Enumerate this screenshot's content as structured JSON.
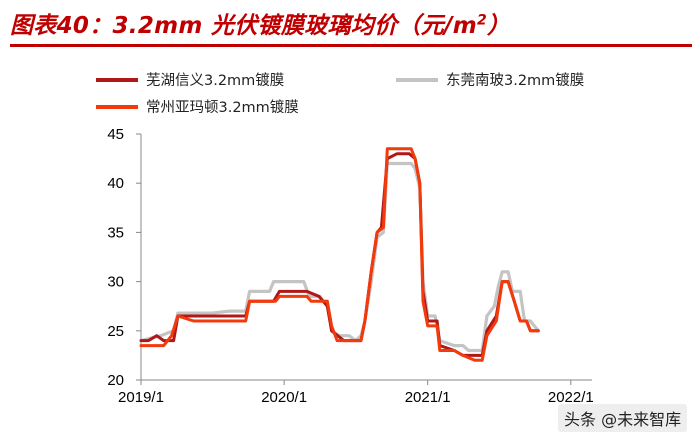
{
  "title": {
    "main": "图表40：3.2mm 光伏镀膜玻璃均价（元/m",
    "sup": "2",
    "close": "）"
  },
  "watermark": "头条 @未来智库",
  "chart_data": {
    "type": "line",
    "title": "图表40：3.2mm 光伏镀膜玻璃均价（元/m²）",
    "xlabel": "",
    "ylabel": "",
    "ylim": [
      20,
      45
    ],
    "yticks": [
      20,
      25,
      30,
      35,
      40,
      45
    ],
    "xlim": [
      "2019-01-01",
      "2022-02-24"
    ],
    "xticks": [
      "2019-01-01",
      "2020-01-01",
      "2021-01-01",
      "2022-01-01"
    ],
    "xtick_labels": [
      "2019/1",
      "2020/1",
      "2021/1",
      "2022/1"
    ],
    "grid": false,
    "legend_position": "top-left",
    "series": [
      {
        "name": "芜湖信义3.2mm镀膜",
        "color": "#b01818",
        "points": [
          [
            "2019-01-01",
            24.0
          ],
          [
            "2019-01-20",
            24.0
          ],
          [
            "2019-02-10",
            24.5
          ],
          [
            "2019-02-28",
            24.0
          ],
          [
            "2019-03-25",
            24.0
          ],
          [
            "2019-04-05",
            26.5
          ],
          [
            "2019-05-15",
            26.5
          ],
          [
            "2019-07-01",
            26.5
          ],
          [
            "2019-08-15",
            26.5
          ],
          [
            "2019-09-25",
            26.5
          ],
          [
            "2019-10-05",
            28.0
          ],
          [
            "2019-12-05",
            28.0
          ],
          [
            "2019-12-20",
            29.0
          ],
          [
            "2020-01-20",
            29.0
          ],
          [
            "2020-02-28",
            29.0
          ],
          [
            "2020-03-30",
            28.5
          ],
          [
            "2020-04-20",
            27.5
          ],
          [
            "2020-05-01",
            25.0
          ],
          [
            "2020-06-01",
            24.0
          ],
          [
            "2020-07-15",
            24.0
          ],
          [
            "2020-07-25",
            26.0
          ],
          [
            "2020-08-10",
            31.0
          ],
          [
            "2020-08-25",
            35.0
          ],
          [
            "2020-09-05",
            35.5
          ],
          [
            "2020-09-20",
            42.5
          ],
          [
            "2020-10-15",
            43.0
          ],
          [
            "2020-11-15",
            43.0
          ],
          [
            "2020-11-30",
            42.5
          ],
          [
            "2020-12-12",
            40.0
          ],
          [
            "2020-12-20",
            29.0
          ],
          [
            "2021-01-01",
            26.0
          ],
          [
            "2021-01-25",
            26.0
          ],
          [
            "2021-02-01",
            23.5
          ],
          [
            "2021-03-10",
            23.0
          ],
          [
            "2021-04-01",
            22.5
          ],
          [
            "2021-05-01",
            22.5
          ],
          [
            "2021-05-20",
            22.5
          ],
          [
            "2021-06-01",
            25.0
          ],
          [
            "2021-06-25",
            26.5
          ],
          [
            "2021-07-10",
            30.0
          ],
          [
            "2021-07-25",
            30.0
          ],
          [
            "2021-08-10",
            28.0
          ],
          [
            "2021-08-25",
            26.0
          ],
          [
            "2021-09-10",
            26.0
          ],
          [
            "2021-09-20",
            25.0
          ],
          [
            "2021-10-10",
            25.0
          ]
        ]
      },
      {
        "name": "东莞南玻3.2mm镀膜",
        "color": "#c4c4c4",
        "points": [
          [
            "2019-01-01",
            24.0
          ],
          [
            "2019-02-20",
            24.5
          ],
          [
            "2019-03-25",
            25.0
          ],
          [
            "2019-04-05",
            26.8
          ],
          [
            "2019-07-01",
            26.8
          ],
          [
            "2019-08-15",
            27.0
          ],
          [
            "2019-09-25",
            27.0
          ],
          [
            "2019-10-05",
            29.0
          ],
          [
            "2019-11-25",
            29.0
          ],
          [
            "2019-12-05",
            30.0
          ],
          [
            "2020-01-05",
            30.0
          ],
          [
            "2020-02-20",
            30.0
          ],
          [
            "2020-03-05",
            28.5
          ],
          [
            "2020-04-01",
            28.5
          ],
          [
            "2020-04-10",
            28.0
          ],
          [
            "2020-04-20",
            28.0
          ],
          [
            "2020-05-01",
            25.0
          ],
          [
            "2020-05-20",
            24.5
          ],
          [
            "2020-06-15",
            24.5
          ],
          [
            "2020-07-01",
            24.0
          ],
          [
            "2020-07-15",
            24.5
          ],
          [
            "2020-07-25",
            26.0
          ],
          [
            "2020-08-10",
            30.0
          ],
          [
            "2020-08-25",
            34.5
          ],
          [
            "2020-09-10",
            35.0
          ],
          [
            "2020-09-20",
            42.0
          ],
          [
            "2020-10-15",
            42.0
          ],
          [
            "2020-11-20",
            42.0
          ],
          [
            "2020-11-30",
            41.5
          ],
          [
            "2020-12-12",
            39.5
          ],
          [
            "2020-12-20",
            30.0
          ],
          [
            "2021-01-01",
            26.5
          ],
          [
            "2021-01-20",
            26.5
          ],
          [
            "2021-02-01",
            24.0
          ],
          [
            "2021-03-10",
            23.5
          ],
          [
            "2021-04-01",
            23.5
          ],
          [
            "2021-04-15",
            23.0
          ],
          [
            "2021-05-20",
            23.0
          ],
          [
            "2021-06-01",
            26.5
          ],
          [
            "2021-06-20",
            27.5
          ],
          [
            "2021-06-30",
            29.5
          ],
          [
            "2021-07-10",
            31.0
          ],
          [
            "2021-07-25",
            31.0
          ],
          [
            "2021-08-05",
            29.0
          ],
          [
            "2021-08-25",
            29.0
          ],
          [
            "2021-09-05",
            26.0
          ],
          [
            "2021-09-20",
            26.0
          ],
          [
            "2021-10-10",
            25.0
          ]
        ]
      },
      {
        "name": "常州亚玛顿3.2mm镀膜",
        "color": "#f23a0c",
        "points": [
          [
            "2019-01-01",
            23.5
          ],
          [
            "2019-02-28",
            23.5
          ],
          [
            "2019-03-20",
            24.5
          ],
          [
            "2019-04-05",
            26.5
          ],
          [
            "2019-05-15",
            26.0
          ],
          [
            "2019-07-01",
            26.0
          ],
          [
            "2019-08-15",
            26.0
          ],
          [
            "2019-09-25",
            26.0
          ],
          [
            "2019-10-05",
            28.0
          ],
          [
            "2019-12-10",
            28.0
          ],
          [
            "2019-12-20",
            28.5
          ],
          [
            "2020-02-28",
            28.5
          ],
          [
            "2020-03-10",
            28.0
          ],
          [
            "2020-04-20",
            28.0
          ],
          [
            "2020-05-01",
            25.5
          ],
          [
            "2020-05-15",
            24.0
          ],
          [
            "2020-06-15",
            24.0
          ],
          [
            "2020-07-15",
            24.0
          ],
          [
            "2020-07-25",
            26.0
          ],
          [
            "2020-08-10",
            31.0
          ],
          [
            "2020-08-25",
            35.0
          ],
          [
            "2020-09-10",
            35.5
          ],
          [
            "2020-09-20",
            43.5
          ],
          [
            "2020-11-20",
            43.5
          ],
          [
            "2020-11-30",
            42.5
          ],
          [
            "2020-12-12",
            40.0
          ],
          [
            "2020-12-20",
            28.0
          ],
          [
            "2021-01-01",
            25.5
          ],
          [
            "2021-01-25",
            25.5
          ],
          [
            "2021-02-01",
            23.0
          ],
          [
            "2021-03-10",
            23.0
          ],
          [
            "2021-04-01",
            22.5
          ],
          [
            "2021-05-01",
            22.0
          ],
          [
            "2021-05-20",
            22.0
          ],
          [
            "2021-06-01",
            24.5
          ],
          [
            "2021-06-25",
            26.0
          ],
          [
            "2021-07-10",
            30.0
          ],
          [
            "2021-07-25",
            30.0
          ],
          [
            "2021-08-10",
            28.0
          ],
          [
            "2021-08-25",
            26.0
          ],
          [
            "2021-09-10",
            26.0
          ],
          [
            "2021-09-20",
            25.0
          ],
          [
            "2021-10-10",
            25.0
          ]
        ]
      }
    ]
  }
}
